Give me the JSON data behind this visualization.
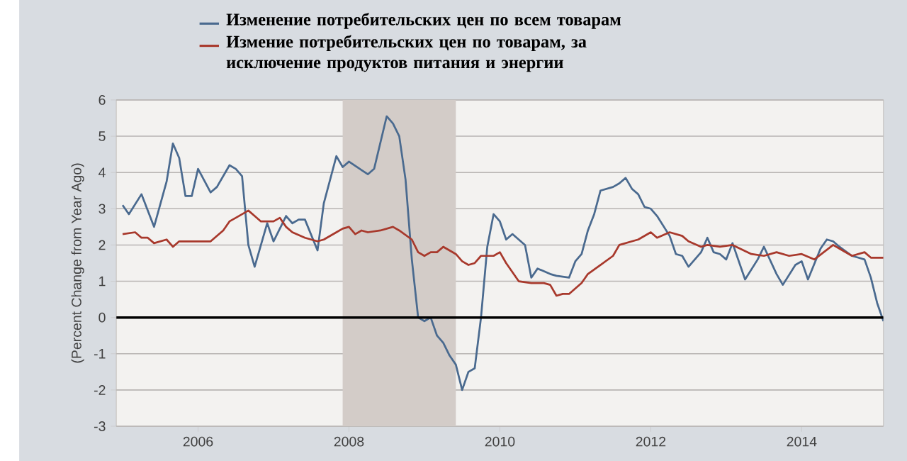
{
  "chart_data": {
    "type": "line",
    "ylabel": "(Percent Change from Year Ago)",
    "xlim": [
      "2004-12",
      "2015-02"
    ],
    "xticks": [
      "2006",
      "2008",
      "2010",
      "2012",
      "2014"
    ],
    "ylim": [
      -3,
      6
    ],
    "yticks": [
      -3,
      -2,
      -1,
      0,
      1,
      2,
      3,
      4,
      5,
      6
    ],
    "grid": "y",
    "legend": "top",
    "ref_lines": [
      {
        "axis": "y",
        "value": 0,
        "color": "#000000"
      }
    ],
    "bands": [
      {
        "axis": "x",
        "from": "2007-12",
        "to": "2009-06",
        "color": "#d3ccc8"
      }
    ],
    "series": [
      {
        "name": "Изменение потребительских цен по всем товарам",
        "color": "#4a6a8f",
        "x": [
          "2005-01",
          "2005-02",
          "2005-04",
          "2005-06",
          "2005-08",
          "2005-09",
          "2005-10",
          "2005-11",
          "2005-12",
          "2006-01",
          "2006-03",
          "2006-04",
          "2006-06",
          "2006-07",
          "2006-08",
          "2006-09",
          "2006-10",
          "2006-12",
          "2007-01",
          "2007-03",
          "2007-04",
          "2007-05",
          "2007-06",
          "2007-08",
          "2007-09",
          "2007-11",
          "2007-12",
          "2008-01",
          "2008-04",
          "2008-05",
          "2008-07",
          "2008-08",
          "2008-09",
          "2008-10",
          "2008-11",
          "2008-12",
          "2009-01",
          "2009-02",
          "2009-03",
          "2009-04",
          "2009-05",
          "2009-06",
          "2009-07",
          "2009-08",
          "2009-09",
          "2009-10",
          "2009-11",
          "2009-12",
          "2010-01",
          "2010-02",
          "2010-03",
          "2010-05",
          "2010-06",
          "2010-07",
          "2010-09",
          "2010-10",
          "2010-12",
          "2011-01",
          "2011-02",
          "2011-03",
          "2011-04",
          "2011-05",
          "2011-07",
          "2011-08",
          "2011-09",
          "2011-10",
          "2011-11",
          "2011-12",
          "2012-01",
          "2012-02",
          "2012-04",
          "2012-05",
          "2012-06",
          "2012-07",
          "2012-09",
          "2012-10",
          "2012-11",
          "2012-12",
          "2013-01",
          "2013-02",
          "2013-04",
          "2013-06",
          "2013-07",
          "2013-09",
          "2013-10",
          "2013-12",
          "2014-01",
          "2014-02",
          "2014-04",
          "2014-05",
          "2014-06",
          "2014-07",
          "2014-09",
          "2014-10",
          "2014-11",
          "2014-12",
          "2015-01",
          "2015-02"
        ],
        "values": [
          3.1,
          2.85,
          3.4,
          2.5,
          3.75,
          4.8,
          4.4,
          3.35,
          3.35,
          4.1,
          3.45,
          3.6,
          4.2,
          4.1,
          3.9,
          2.0,
          1.4,
          2.6,
          2.1,
          2.8,
          2.6,
          2.7,
          2.7,
          1.85,
          3.15,
          4.45,
          4.15,
          4.3,
          3.95,
          4.1,
          5.55,
          5.35,
          5.0,
          3.8,
          1.6,
          0.0,
          -0.1,
          0.0,
          -0.5,
          -0.7,
          -1.05,
          -1.3,
          -2.0,
          -1.5,
          -1.4,
          0.0,
          1.95,
          2.85,
          2.65,
          2.15,
          2.3,
          2.0,
          1.1,
          1.35,
          1.2,
          1.15,
          1.1,
          1.55,
          1.75,
          2.4,
          2.85,
          3.5,
          3.6,
          3.7,
          3.85,
          3.55,
          3.4,
          3.05,
          3.0,
          2.8,
          2.25,
          1.75,
          1.7,
          1.4,
          1.8,
          2.2,
          1.8,
          1.75,
          1.6,
          2.05,
          1.05,
          1.6,
          1.95,
          1.2,
          0.9,
          1.45,
          1.55,
          1.05,
          1.9,
          2.15,
          2.1,
          1.95,
          1.7,
          1.65,
          1.6,
          1.1,
          0.4,
          -0.1
        ]
      },
      {
        "name": "Измение потребительских цен по товарам, за исключение продуктов питания и энергии",
        "color": "#a8392c",
        "x": [
          "2005-01",
          "2005-03",
          "2005-04",
          "2005-05",
          "2005-06",
          "2005-08",
          "2005-09",
          "2005-10",
          "2006-01",
          "2006-03",
          "2006-05",
          "2006-06",
          "2006-07",
          "2006-09",
          "2006-10",
          "2006-11",
          "2007-01",
          "2007-02",
          "2007-03",
          "2007-04",
          "2007-06",
          "2007-08",
          "2007-09",
          "2007-11",
          "2007-12",
          "2008-01",
          "2008-02",
          "2008-03",
          "2008-04",
          "2008-06",
          "2008-08",
          "2008-09",
          "2008-11",
          "2008-12",
          "2009-01",
          "2009-02",
          "2009-03",
          "2009-04",
          "2009-06",
          "2009-07",
          "2009-08",
          "2009-09",
          "2009-10",
          "2009-12",
          "2010-01",
          "2010-02",
          "2010-03",
          "2010-04",
          "2010-06",
          "2010-08",
          "2010-09",
          "2010-10",
          "2010-11",
          "2010-12",
          "2011-02",
          "2011-03",
          "2011-05",
          "2011-07",
          "2011-08",
          "2011-10",
          "2011-11",
          "2012-01",
          "2012-02",
          "2012-04",
          "2012-06",
          "2012-07",
          "2012-09",
          "2012-10",
          "2012-12",
          "2013-02",
          "2013-05",
          "2013-07",
          "2013-09",
          "2013-11",
          "2014-01",
          "2014-03",
          "2014-06",
          "2014-07",
          "2014-09",
          "2014-11",
          "2014-12",
          "2015-02"
        ],
        "values": [
          2.3,
          2.35,
          2.2,
          2.2,
          2.05,
          2.15,
          1.95,
          2.1,
          2.1,
          2.1,
          2.4,
          2.65,
          2.75,
          2.95,
          2.8,
          2.65,
          2.65,
          2.75,
          2.5,
          2.35,
          2.2,
          2.1,
          2.15,
          2.35,
          2.45,
          2.5,
          2.3,
          2.4,
          2.35,
          2.4,
          2.5,
          2.4,
          2.15,
          1.8,
          1.7,
          1.8,
          1.8,
          1.95,
          1.75,
          1.55,
          1.45,
          1.5,
          1.7,
          1.7,
          1.8,
          1.5,
          1.25,
          1.0,
          0.95,
          0.95,
          0.9,
          0.6,
          0.65,
          0.65,
          0.95,
          1.2,
          1.45,
          1.7,
          2.0,
          2.1,
          2.15,
          2.35,
          2.2,
          2.35,
          2.25,
          2.1,
          1.95,
          2.0,
          1.95,
          2.0,
          1.75,
          1.7,
          1.8,
          1.7,
          1.75,
          1.6,
          2.0,
          1.9,
          1.7,
          1.8,
          1.65,
          1.65
        ]
      }
    ]
  }
}
